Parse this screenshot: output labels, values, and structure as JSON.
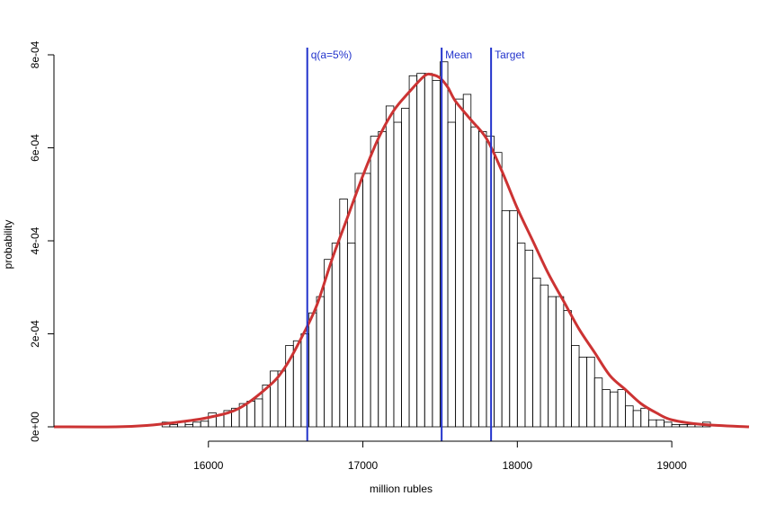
{
  "chart_data": {
    "type": "bar",
    "title": "",
    "xlabel": "million rubles",
    "ylabel": "probability",
    "xlim": [
      15000,
      19500
    ],
    "ylim": [
      0,
      0.0008
    ],
    "x_ticks": [
      16000,
      17000,
      18000,
      19000
    ],
    "x_tick_labels": [
      "16000",
      "17000",
      "18000",
      "19000"
    ],
    "y_ticks": [
      0,
      0.0002,
      0.0004,
      0.0006,
      0.0008
    ],
    "y_tick_labels": [
      "0e+00",
      "2e-04",
      "4e-04",
      "6e-04",
      "8e-04"
    ],
    "bin_width": 50,
    "bins_start": 15700,
    "histogram_values": [
      1e-05,
      5e-06,
      1e-05,
      5e-06,
      1e-05,
      1.2e-05,
      3e-05,
      2.5e-05,
      3.5e-05,
      4e-05,
      5e-05,
      5.5e-05,
      6e-05,
      9e-05,
      0.00012,
      0.00012,
      0.000175,
      0.000185,
      0.0002,
      0.000245,
      0.00028,
      0.00036,
      0.000395,
      0.00049,
      0.000395,
      0.000545,
      0.000545,
      0.000625,
      0.000635,
      0.00069,
      0.000655,
      0.000685,
      0.000755,
      0.00076,
      0.00076,
      0.000745,
      0.000785,
      0.000655,
      0.000705,
      0.000715,
      0.000645,
      0.000635,
      0.000625,
      0.00059,
      0.000465,
      0.000465,
      0.000395,
      0.00038,
      0.00032,
      0.000305,
      0.00028,
      0.00028,
      0.00025,
      0.000175,
      0.00015,
      0.00015,
      0.000105,
      8e-05,
      7.5e-05,
      8e-05,
      4.5e-05,
      3.5e-05,
      4e-05,
      1.5e-05,
      1.5e-05,
      1e-05,
      5e-06,
      5e-06,
      5e-06,
      5e-06,
      1e-05
    ],
    "density_line": {
      "color": "#cc3333",
      "x": [
        15000,
        15400,
        15600,
        15800,
        16000,
        16200,
        16400,
        16500,
        16600,
        16700,
        16800,
        16900,
        17000,
        17100,
        17200,
        17300,
        17400,
        17450,
        17500,
        17550,
        17600,
        17700,
        17800,
        17900,
        18000,
        18100,
        18200,
        18300,
        18400,
        18500,
        18600,
        18700,
        18800,
        18900,
        19000,
        19200,
        19500
      ],
      "y": [
        0,
        0,
        3e-06,
        1e-05,
        2e-05,
        4e-05,
        9e-05,
        0.00013,
        0.00019,
        0.00026,
        0.00036,
        0.00045,
        0.00054,
        0.00062,
        0.00068,
        0.00072,
        0.000755,
        0.000757,
        0.00075,
        0.00073,
        0.0007,
        0.00066,
        0.00062,
        0.00055,
        0.00047,
        0.0004,
        0.00033,
        0.00027,
        0.00021,
        0.00016,
        0.00011,
        8e-05,
        5e-05,
        3e-05,
        1.5e-05,
        5e-06,
        0
      ]
    },
    "vertical_lines": [
      {
        "x": 16640,
        "label": "q(a=5%)",
        "color": "#2233cc"
      },
      {
        "x": 17510,
        "label": "Mean",
        "color": "#2233cc"
      },
      {
        "x": 17830,
        "label": "Target",
        "color": "#2233cc"
      }
    ],
    "grid": false,
    "legend": "none"
  }
}
